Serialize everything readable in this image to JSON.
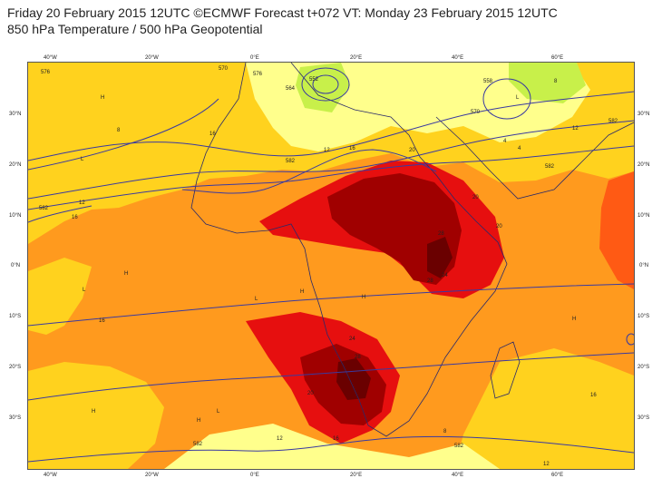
{
  "header": {
    "line1": "Friday 20 February 2015 12UTC ©ECMWF Forecast t+072 VT: Monday 23 February 2015 12UTC",
    "line2": "850 hPa Temperature / 500 hPa Geopotential"
  },
  "axes": {
    "lon_labels": [
      "40°W",
      "20°W",
      "0°E",
      "20°E",
      "40°E",
      "60°E"
    ],
    "lat_labels": [
      "30°N",
      "20°N",
      "10°N",
      "0°N",
      "10°S",
      "20°S",
      "30°S"
    ]
  },
  "colors": {
    "frame": "#555555",
    "contour_line": "#3a3aa0",
    "coast_line": "#2a2a6a",
    "temp_fill_lowest": "#c8f04a",
    "temp_fill_low": "#ffff8c",
    "temp_fill_mid": "#ffd21e",
    "temp_fill_warm": "#ff9a1e",
    "temp_fill_hot": "#ff5a14",
    "temp_fill_hotter": "#e60f0f",
    "temp_fill_hottest": "#a00000",
    "temp_fill_extreme": "#6a0000"
  },
  "contour_labels": [
    {
      "text": "570"
    },
    {
      "text": "576"
    },
    {
      "text": "582"
    },
    {
      "text": "582"
    },
    {
      "text": "582"
    },
    {
      "text": "582"
    },
    {
      "text": "582"
    },
    {
      "text": "552"
    },
    {
      "text": "564"
    },
    {
      "text": "558"
    },
    {
      "text": "570"
    },
    {
      "text": "576"
    },
    {
      "text": "582"
    }
  ],
  "temperature_labels": [
    {
      "text": "16"
    },
    {
      "text": "12"
    },
    {
      "text": "8"
    },
    {
      "text": "4"
    },
    {
      "text": "12"
    },
    {
      "text": "16"
    },
    {
      "text": "20"
    },
    {
      "text": "20"
    },
    {
      "text": "28"
    },
    {
      "text": "24"
    },
    {
      "text": "28"
    },
    {
      "text": "20"
    },
    {
      "text": "24"
    },
    {
      "text": "28"
    },
    {
      "text": "20"
    },
    {
      "text": "16"
    },
    {
      "text": "12"
    },
    {
      "text": "8"
    },
    {
      "text": "4"
    },
    {
      "text": "16"
    },
    {
      "text": "12"
    },
    {
      "text": "16"
    },
    {
      "text": "16"
    },
    {
      "text": "12"
    },
    {
      "text": "8"
    }
  ],
  "pressure_centers": {
    "high": "H",
    "low": "L"
  }
}
